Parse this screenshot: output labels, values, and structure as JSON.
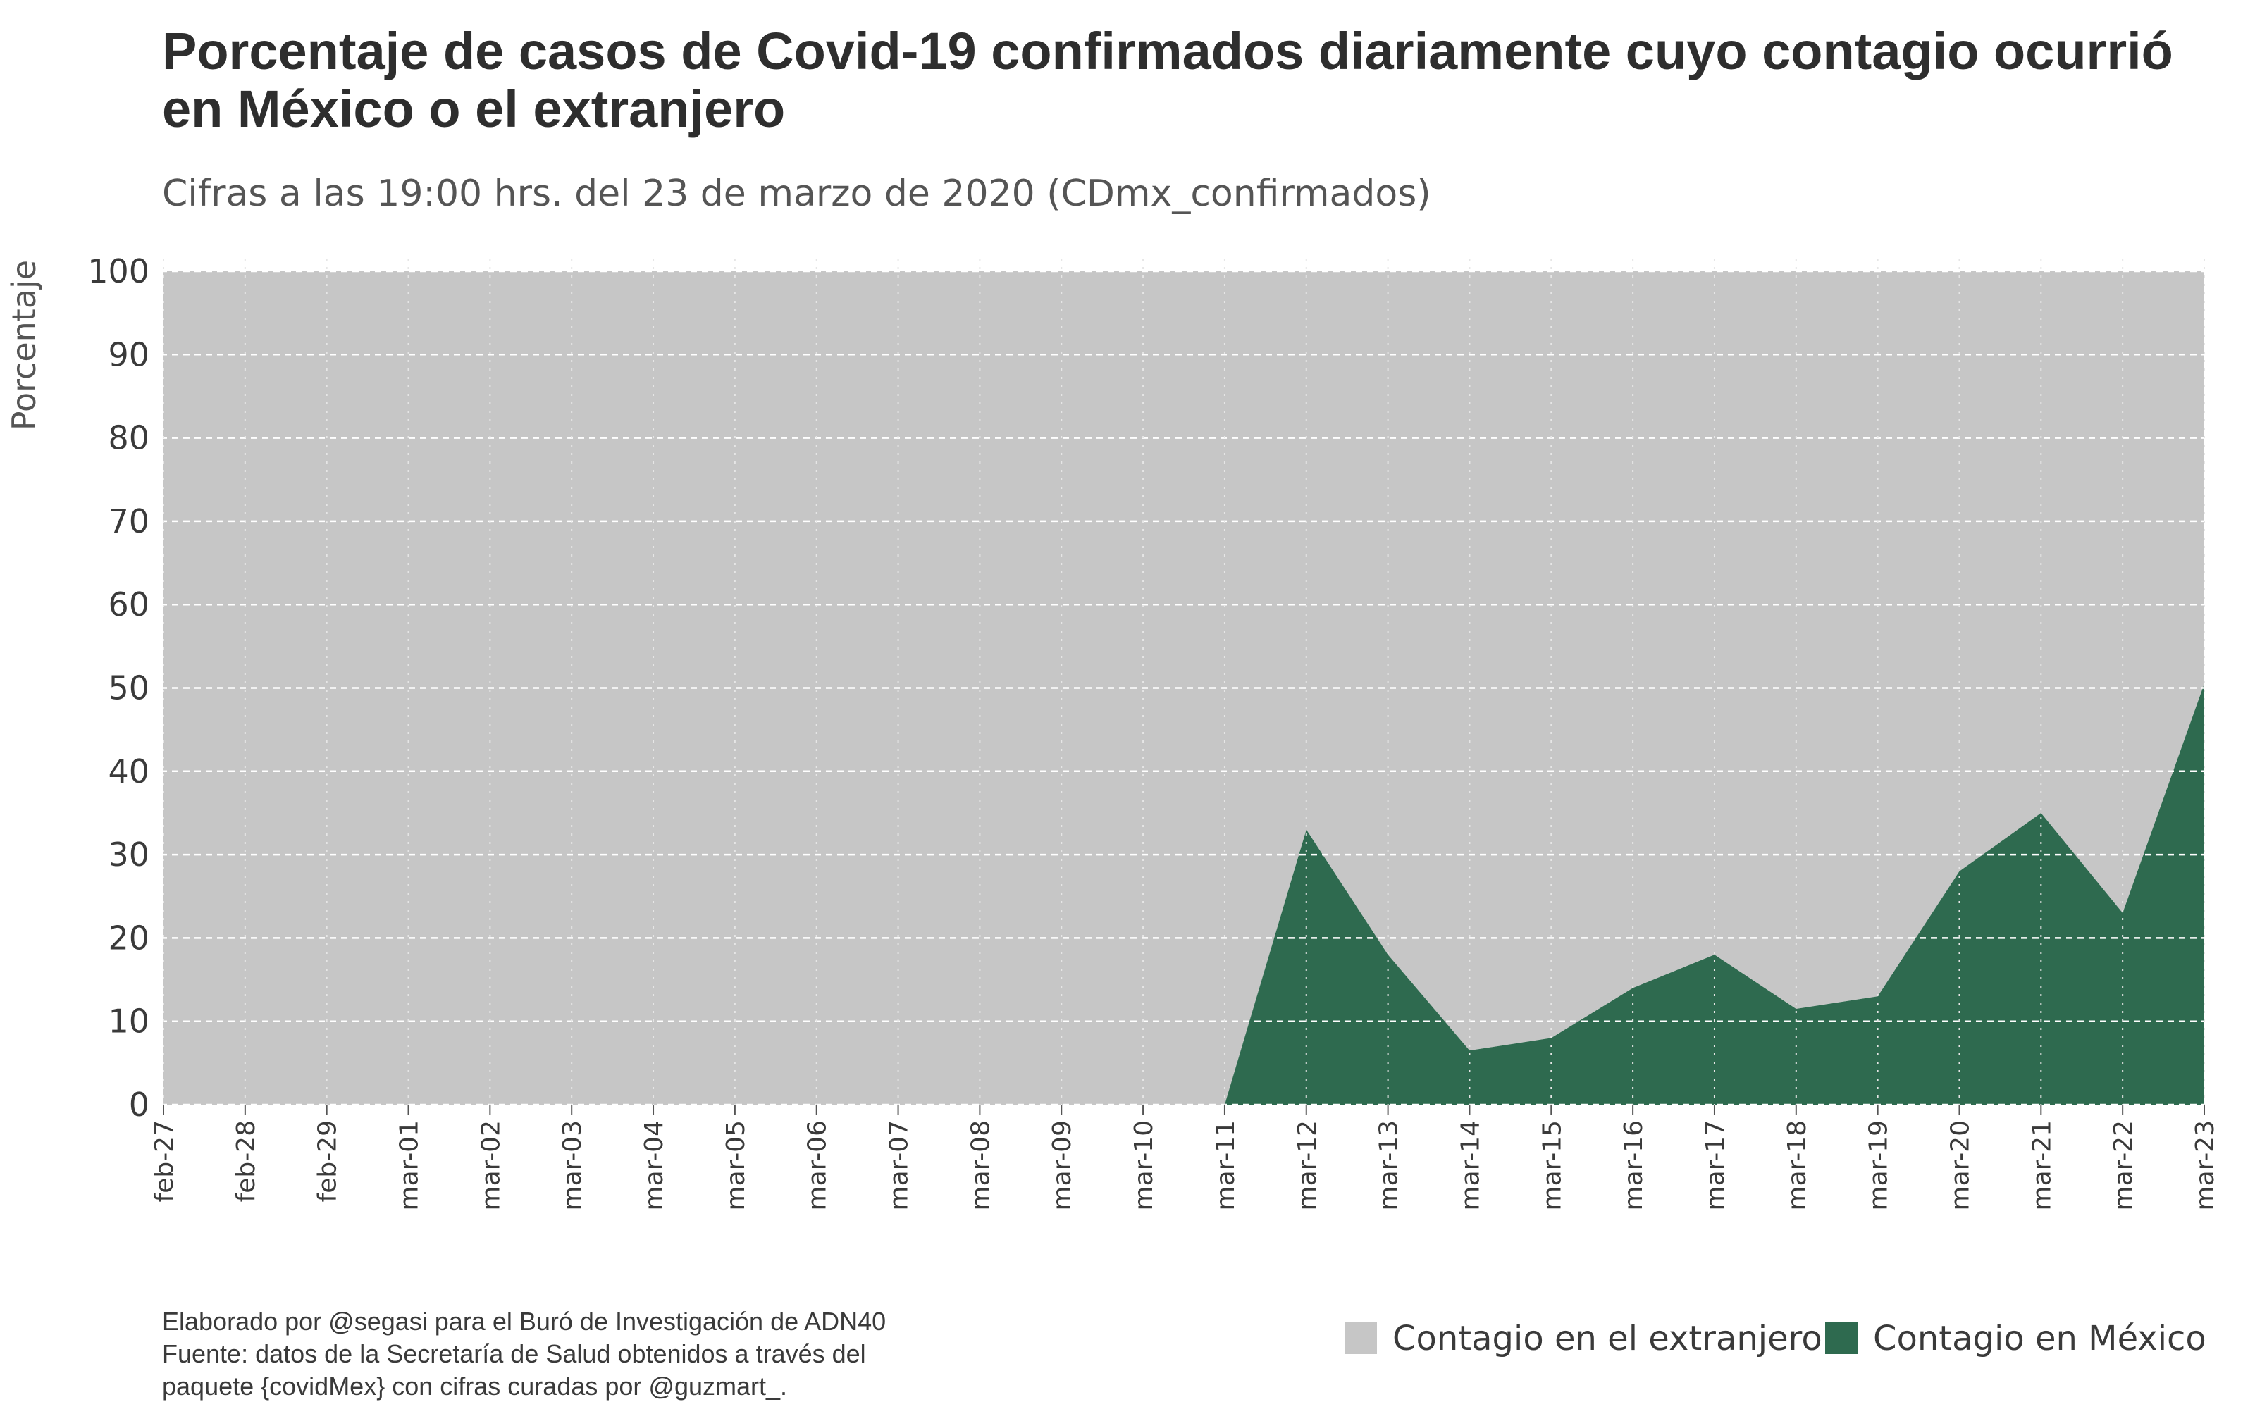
{
  "colors": {
    "extranjero": "#c6c6c6",
    "mexico": "#2e6a4f",
    "grid": "#ffffff"
  },
  "caption": {
    "line1": "Elaborado por @segasi  para el Buró de Investigación de ADN40",
    "line2": "Fuente: datos de la Secretaría de Salud obtenidos a través del",
    "line3": "paquete {covidMex} con cifras curadas por @guzmart_."
  },
  "chart_data": {
    "type": "area",
    "title_line1": "Porcentaje de casos de Covid-19 confirmados diariamente cuyo contagio ocurrió",
    "title_line2": "en México o el extranjero",
    "subtitle": "Cifras a las 19:00 hrs. del 23 de marzo de 2020 (CDmx_confirmados)",
    "xlabel": "",
    "ylabel": "Porcentaje",
    "ylim": [
      0,
      100
    ],
    "yticks": [
      0,
      10,
      20,
      30,
      40,
      50,
      60,
      70,
      80,
      90,
      100
    ],
    "stacked": true,
    "grid": "dashed horizontal",
    "legend_position": "bottom-right",
    "categories": [
      "feb-27",
      "feb-28",
      "feb-29",
      "mar-01",
      "mar-02",
      "mar-03",
      "mar-04",
      "mar-05",
      "mar-06",
      "mar-07",
      "mar-08",
      "mar-09",
      "mar-10",
      "mar-11",
      "mar-12",
      "mar-13",
      "mar-14",
      "mar-15",
      "mar-16",
      "mar-17",
      "mar-18",
      "mar-19",
      "mar-20",
      "mar-21",
      "mar-22",
      "mar-23"
    ],
    "series": [
      {
        "name": "Contagio en el extranjero",
        "values": [
          100,
          100,
          100,
          100,
          100,
          100,
          100,
          100,
          100,
          100,
          100,
          100,
          100,
          100,
          67,
          82,
          93.5,
          92,
          86,
          82,
          88.5,
          87,
          72,
          65,
          77,
          49.5
        ]
      },
      {
        "name": "Contagio en México",
        "values": [
          0,
          0,
          0,
          0,
          0,
          0,
          0,
          0,
          0,
          0,
          0,
          0,
          0,
          0,
          33,
          18,
          6.5,
          8,
          14,
          18,
          11.5,
          13,
          28,
          35,
          23,
          50.5
        ]
      }
    ]
  }
}
